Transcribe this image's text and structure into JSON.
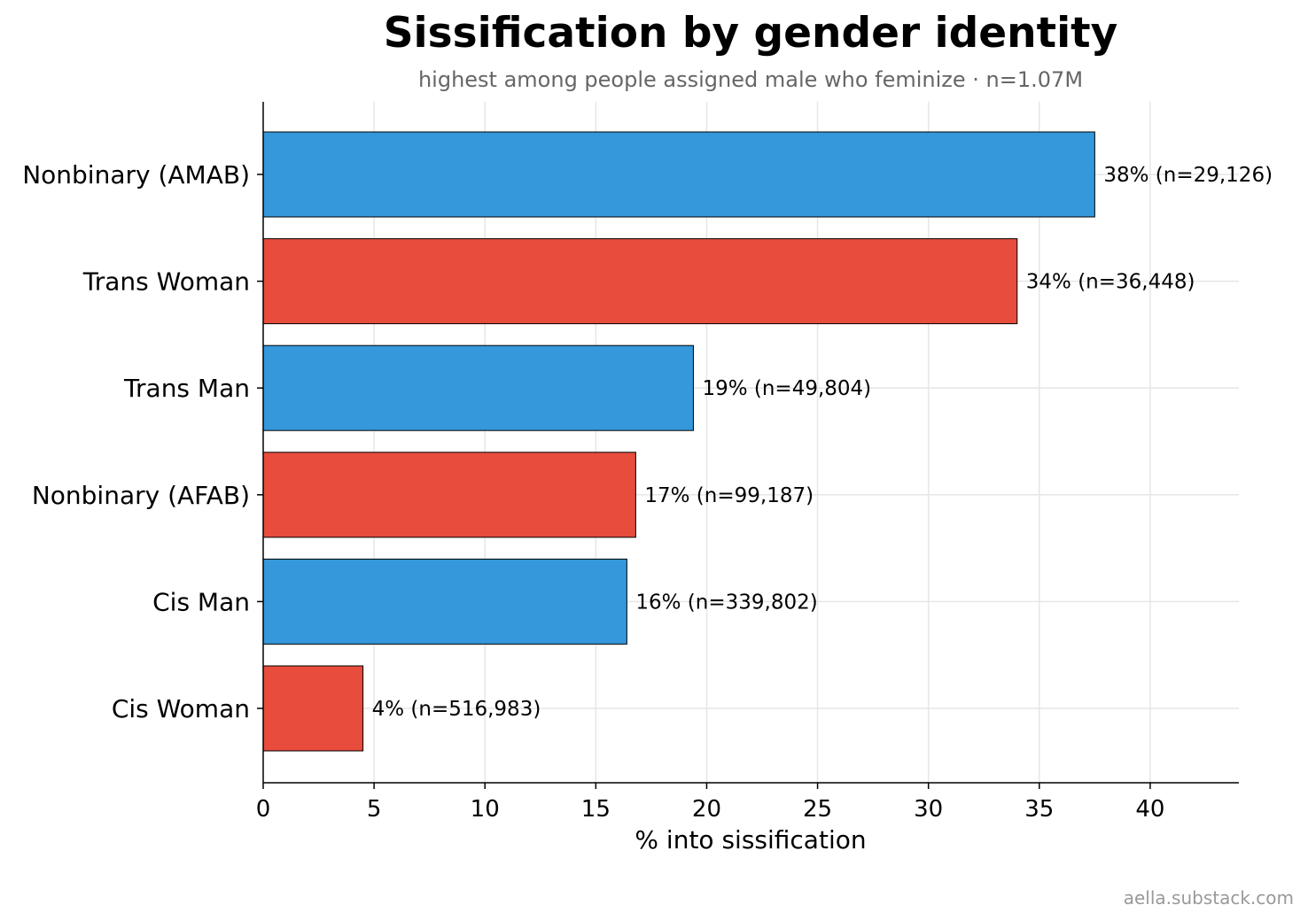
{
  "chart_data": {
    "type": "bar",
    "orientation": "horizontal",
    "title": "Sissification by gender identity",
    "subtitle": "highest among people assigned male who feminize · n=1.07M",
    "xlabel": "% into sissification",
    "ylabel": "",
    "xlim": [
      0,
      44
    ],
    "xticks": [
      0,
      5,
      10,
      15,
      20,
      25,
      30,
      35,
      40
    ],
    "grid": true,
    "categories": [
      "Nonbinary (AMAB)",
      "Trans Woman",
      "Trans Man",
      "Nonbinary (AFAB)",
      "Cis Man",
      "Cis Woman"
    ],
    "values": [
      37.5,
      34.0,
      19.4,
      16.8,
      16.4,
      4.5
    ],
    "data_labels": [
      "38%  (n=29,126)",
      "34%  (n=36,448)",
      "19%  (n=49,804)",
      "17%  (n=99,187)",
      "16%  (n=339,802)",
      "4%  (n=516,983)"
    ],
    "bar_colors": [
      "#3498db",
      "#e74c3c",
      "#3498db",
      "#e74c3c",
      "#3498db",
      "#e74c3c"
    ]
  },
  "credit": "aella.substack.com"
}
